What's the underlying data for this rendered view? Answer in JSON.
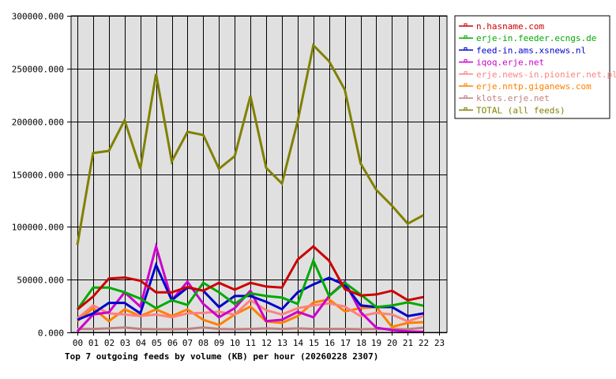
{
  "chart_data": {
    "type": "line",
    "title": "Top 7 outgoing feeds by volume (KB) per hour (20260228 2307)",
    "xlabel": "",
    "ylabel": "",
    "ylim": [
      0,
      300000
    ],
    "yticks": [
      "0.000",
      "50000.000",
      "100000.000",
      "150000.000",
      "200000.000",
      "250000.000",
      "300000.000"
    ],
    "x": [
      "00",
      "01",
      "02",
      "03",
      "04",
      "05",
      "06",
      "07",
      "08",
      "09",
      "10",
      "11",
      "12",
      "13",
      "14",
      "15",
      "16",
      "17",
      "18",
      "19",
      "20",
      "21",
      "22",
      "23"
    ],
    "grid": true,
    "legend_position": "right",
    "series": [
      {
        "name": "n.hasname.com",
        "color": "#cc0000",
        "values": [
          21800,
          34000,
          51000,
          52000,
          49000,
          38000,
          38000,
          43000,
          39500,
          47000,
          40500,
          47000,
          43500,
          42500,
          69000,
          81500,
          68000,
          41000,
          35000,
          36000,
          39500,
          30500,
          33500
        ]
      },
      {
        "name": "erje-in.feeder.ecngs.de",
        "color": "#00aa00",
        "values": [
          21800,
          42500,
          42500,
          38000,
          32000,
          23000,
          30500,
          26000,
          47000,
          38000,
          27000,
          37000,
          34500,
          33000,
          27000,
          68000,
          34500,
          47000,
          36000,
          24000,
          25500,
          28500,
          25300
        ]
      },
      {
        "name": "feed-in.ams.xsnews.nl",
        "color": "#0000cc",
        "values": [
          12000,
          18000,
          28000,
          28000,
          18000,
          64000,
          30500,
          42500,
          39500,
          24000,
          34500,
          34500,
          29000,
          22000,
          38000,
          45500,
          51700,
          45000,
          25600,
          24000,
          24000,
          15500,
          18000
        ]
      },
      {
        "name": "iqoq.erje.net",
        "color": "#cc00cc",
        "values": [
          1000,
          17000,
          19000,
          38000,
          24500,
          81500,
          30500,
          48000,
          27000,
          14400,
          23000,
          39500,
          10700,
          12000,
          19500,
          14400,
          34500,
          48000,
          19400,
          4500,
          2200,
          1000,
          500
        ]
      },
      {
        "name": "erje.news-in.pionier.net.pl",
        "color": "#ff8080",
        "values": [
          13000,
          25600,
          18000,
          17000,
          15500,
          17000,
          14400,
          18000,
          18500,
          19500,
          17000,
          30500,
          21000,
          17000,
          23000,
          25600,
          27600,
          24500,
          15500,
          18500,
          17000,
          10500,
          15500
        ]
      },
      {
        "name": "erje.nntp.giganews.com",
        "color": "#ff8000",
        "values": [
          10700,
          23000,
          10700,
          21800,
          15500,
          21800,
          15500,
          21800,
          12000,
          7000,
          17000,
          24500,
          10500,
          9000,
          15500,
          28300,
          31300,
          20000,
          23000,
          24000,
          5200,
          9000,
          9700
        ]
      },
      {
        "name": "klots.erje.net",
        "color": "#c08080",
        "values": [
          3300,
          3300,
          3800,
          4700,
          3300,
          3000,
          3000,
          3300,
          4700,
          3300,
          3000,
          3300,
          3800,
          3300,
          3800,
          3300,
          3300,
          3300,
          3000,
          3300,
          3300,
          3000,
          4500
        ]
      },
      {
        "name": "TOTAL (all feeds)",
        "color": "#808000",
        "values": [
          83000,
          170000,
          172000,
          201000,
          155000,
          245000,
          162000,
          190000,
          187000,
          155000,
          167000,
          224000,
          156000,
          141000,
          200000,
          272000,
          257000,
          230000,
          160000,
          135000,
          120000,
          103000,
          111000
        ]
      }
    ]
  }
}
